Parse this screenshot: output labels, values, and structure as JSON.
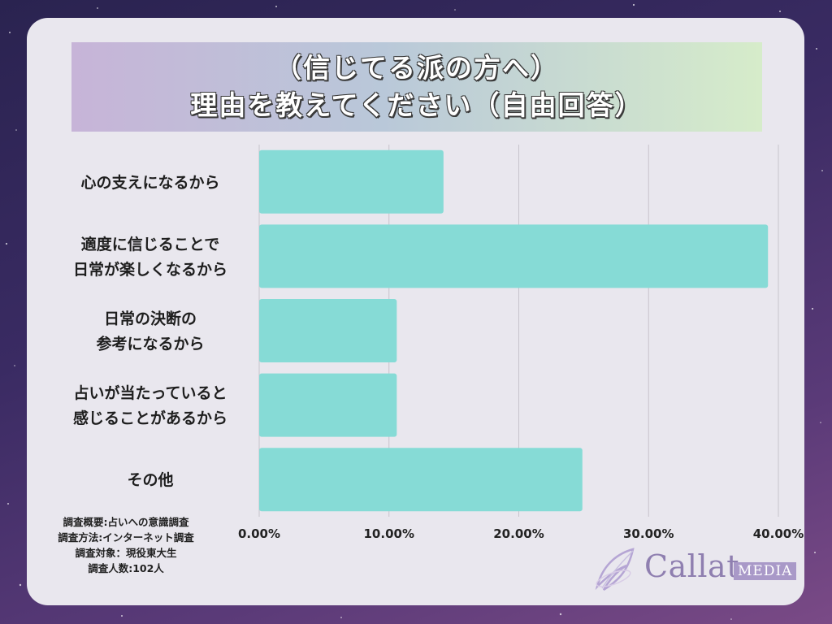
{
  "title": {
    "line1": "（信じてる派の方へ）",
    "line2": "理由を教えてください（自由回答）"
  },
  "chart_data": {
    "type": "bar",
    "orientation": "horizontal",
    "categories": [
      "心の支えになるから",
      "適度に信じることで\n日常が楽しくなるから",
      "日常の決断の\n参考になるから",
      "占いが当たっていると\n感じることがあるから",
      "その他"
    ],
    "values": [
      14.2,
      39.2,
      10.6,
      10.6,
      24.9
    ],
    "xlim": [
      0,
      40
    ],
    "x_ticks": [
      "0.00%",
      "10.00%",
      "20.00%",
      "30.00%",
      "40.00%"
    ],
    "grid": true,
    "bar_color": "#86dbd6",
    "grid_color": "#c7c4cc"
  },
  "survey_notes": [
    "調査概要:占いへの意識調査",
    "調査方法:インターネット調査",
    "調査対象：現役東大生",
    "調査人数:102人"
  ],
  "logo": {
    "name": "Callat",
    "suffix": "MEDIA",
    "icon": "feather-icon"
  },
  "colors": {
    "card_bg": "#e9e7ee",
    "logo_color": "#8f7fb0"
  }
}
